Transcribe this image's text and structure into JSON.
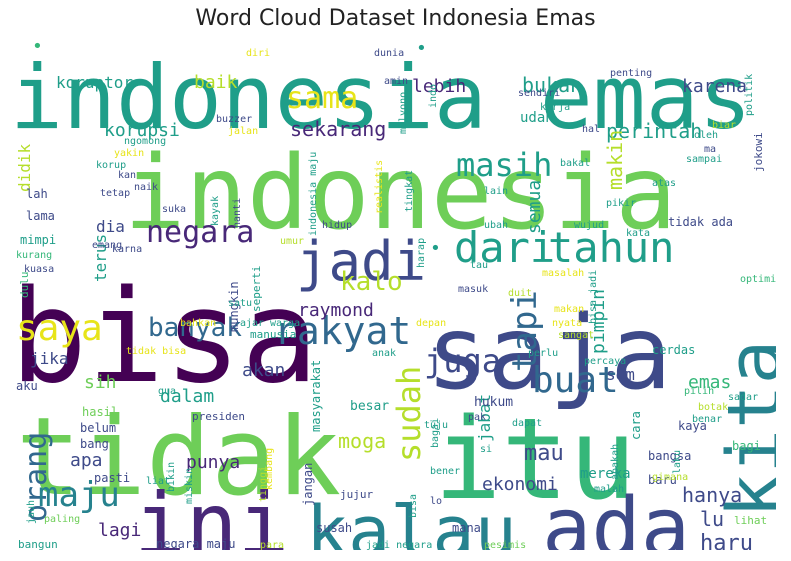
{
  "title": "Word Cloud Dataset Indonesia Emas",
  "palette": {
    "dark_purple": "#440154",
    "purple": "#482878",
    "indigo": "#3e4a89",
    "blue": "#31688e",
    "teal_blue": "#26828e",
    "teal": "#1f9e89",
    "green_teal": "#35b779",
    "green": "#6ece58",
    "lime": "#b5de2b",
    "yellow": "#e7e419"
  },
  "words": [
    {
      "text": "indonesia emas",
      "color": "teal"
    },
    {
      "text": "indonesia",
      "color": "green"
    },
    {
      "text": "bisa",
      "color": "dark_purple"
    },
    {
      "text": "saja",
      "color": "indigo"
    },
    {
      "text": "tidak",
      "color": "green"
    },
    {
      "text": "itu",
      "color": "green_teal"
    },
    {
      "text": "kita",
      "color": "teal_blue"
    },
    {
      "text": "ini",
      "color": "purple"
    },
    {
      "text": "ada",
      "color": "indigo"
    },
    {
      "text": "kalau",
      "color": "teal_blue"
    },
    {
      "text": "jadi",
      "color": "indigo"
    },
    {
      "text": "dari",
      "color": "teal"
    },
    {
      "text": "tahun",
      "color": "teal"
    },
    {
      "text": "sama",
      "color": "yellow"
    },
    {
      "text": "saya",
      "color": "yellow"
    },
    {
      "text": "rakyat",
      "color": "blue"
    },
    {
      "text": "negara",
      "color": "purple"
    },
    {
      "text": "masih",
      "color": "teal"
    },
    {
      "text": "tapi",
      "color": "blue"
    },
    {
      "text": "buat",
      "color": "blue"
    },
    {
      "text": "juga",
      "color": "indigo"
    },
    {
      "text": "banyak",
      "color": "blue"
    },
    {
      "text": "kalo",
      "color": "lime"
    },
    {
      "text": "sudah",
      "color": "lime"
    },
    {
      "text": "orang",
      "color": "blue"
    },
    {
      "text": "maju",
      "color": "teal_blue"
    },
    {
      "text": "korupsi",
      "color": "teal"
    },
    {
      "text": "sekarang",
      "color": "purple"
    },
    {
      "text": "lebih",
      "color": "purple"
    },
    {
      "text": "bukan",
      "color": "teal"
    },
    {
      "text": "karena",
      "color": "indigo"
    },
    {
      "text": "perintah",
      "color": "teal"
    },
    {
      "text": "makin",
      "color": "lime"
    },
    {
      "text": "semua",
      "color": "teal"
    },
    {
      "text": "udah",
      "color": "teal"
    },
    {
      "text": "raymond",
      "color": "purple"
    },
    {
      "text": "pimpin",
      "color": "teal"
    },
    {
      "text": "akan",
      "color": "indigo"
    },
    {
      "text": "dalam",
      "color": "teal"
    },
    {
      "text": "emas",
      "color": "green_teal"
    },
    {
      "text": "sih",
      "color": "green"
    },
    {
      "text": "jika",
      "color": "indigo"
    },
    {
      "text": "apa",
      "color": "indigo"
    },
    {
      "text": "punya",
      "color": "purple"
    },
    {
      "text": "moga",
      "color": "lime"
    },
    {
      "text": "mau",
      "color": "indigo"
    },
    {
      "text": "jabat",
      "color": "teal"
    },
    {
      "text": "hanya",
      "color": "indigo"
    },
    {
      "text": "ekonomi",
      "color": "indigo"
    },
    {
      "text": "lu",
      "color": "indigo"
    },
    {
      "text": "haru",
      "color": "indigo"
    },
    {
      "text": "lagi",
      "color": "purple"
    },
    {
      "text": "baik",
      "color": "lime"
    },
    {
      "text": "koruptor",
      "color": "teal"
    },
    {
      "text": "sdm",
      "color": "indigo"
    },
    {
      "text": "didik",
      "color": "lime"
    },
    {
      "text": "terus",
      "color": "teal"
    },
    {
      "text": "dia",
      "color": "indigo"
    },
    {
      "text": "lama",
      "color": "indigo"
    },
    {
      "text": "lah",
      "color": "indigo"
    },
    {
      "text": "mimpi",
      "color": "teal"
    },
    {
      "text": "kurang",
      "color": "green_teal"
    },
    {
      "text": "kuasa",
      "color": "indigo"
    },
    {
      "text": "dulu",
      "color": "green_teal"
    },
    {
      "text": "aku",
      "color": "indigo"
    },
    {
      "text": "gua",
      "color": "teal"
    },
    {
      "text": "hasil",
      "color": "green"
    },
    {
      "text": "belum",
      "color": "indigo"
    },
    {
      "text": "bang",
      "color": "indigo"
    },
    {
      "text": "pasti",
      "color": "indigo"
    },
    {
      "text": "liat",
      "color": "teal"
    },
    {
      "text": "jangan",
      "color": "indigo"
    },
    {
      "text": "susah",
      "color": "indigo"
    },
    {
      "text": "mana",
      "color": "indigo"
    },
    {
      "text": "jujur",
      "color": "indigo"
    },
    {
      "text": "mereka",
      "color": "teal"
    },
    {
      "text": "baru",
      "color": "indigo"
    },
    {
      "text": "lihat",
      "color": "green"
    },
    {
      "text": "bangun",
      "color": "teal"
    },
    {
      "text": "paling",
      "color": "green"
    },
    {
      "text": "negara maju",
      "color": "indigo"
    },
    {
      "text": "jadi negara",
      "color": "teal"
    },
    {
      "text": "pesimis",
      "color": "green"
    },
    {
      "text": "para",
      "color": "lime"
    },
    {
      "text": "bangsa",
      "color": "indigo"
    },
    {
      "text": "kaya",
      "color": "indigo"
    },
    {
      "text": "cara",
      "color": "teal"
    },
    {
      "text": "gimana",
      "color": "lime"
    },
    {
      "text": "bagi",
      "color": "green_teal"
    },
    {
      "text": "benar",
      "color": "teal"
    },
    {
      "text": "botak",
      "color": "lime"
    },
    {
      "text": "sadar",
      "color": "teal"
    },
    {
      "text": "pilih",
      "color": "green_teal"
    },
    {
      "text": "cerdas",
      "color": "teal"
    },
    {
      "text": "hukum",
      "color": "indigo"
    },
    {
      "text": "besar",
      "color": "teal"
    },
    {
      "text": "tuju",
      "color": "teal"
    },
    {
      "text": "presiden",
      "color": "indigo"
    },
    {
      "text": "masyarakat",
      "color": "teal"
    },
    {
      "text": "manusia",
      "color": "teal"
    },
    {
      "text": "warga",
      "color": "teal"
    },
    {
      "text": "seperti",
      "color": "teal"
    },
    {
      "text": "mungkin",
      "color": "indigo"
    },
    {
      "text": "satu",
      "color": "teal"
    },
    {
      "text": "karna",
      "color": "indigo"
    },
    {
      "text": "umur",
      "color": "lime"
    },
    {
      "text": "hidup",
      "color": "indigo"
    },
    {
      "text": "ubah",
      "color": "teal"
    },
    {
      "text": "wujud",
      "color": "teal"
    },
    {
      "text": "kata",
      "color": "teal"
    },
    {
      "text": "tidak ada",
      "color": "indigo"
    },
    {
      "text": "optimis",
      "color": "green_teal"
    },
    {
      "text": "tau",
      "color": "teal"
    },
    {
      "text": "masalah",
      "color": "yellow"
    },
    {
      "text": "duit",
      "color": "lime"
    },
    {
      "text": "masuk",
      "color": "indigo"
    },
    {
      "text": "makan",
      "color": "yellow"
    },
    {
      "text": "nyata",
      "color": "yellow"
    },
    {
      "text": "sangat",
      "color": "lime"
    },
    {
      "text": "perlu",
      "color": "teal"
    },
    {
      "text": "percaya",
      "color": "teal"
    },
    {
      "text": "depan",
      "color": "yellow"
    },
    {
      "text": "bisa jadi",
      "color": "teal"
    },
    {
      "text": "harap",
      "color": "teal"
    },
    {
      "text": "anak",
      "color": "teal"
    },
    {
      "text": "tidak bisa",
      "color": "yellow"
    },
    {
      "text": "bahkan",
      "color": "yellow"
    },
    {
      "text": "ajar",
      "color": "teal"
    },
    {
      "text": "emang",
      "color": "indigo"
    },
    {
      "text": "tetap",
      "color": "indigo"
    },
    {
      "text": "kayak",
      "color": "teal"
    },
    {
      "text": "suka",
      "color": "indigo"
    },
    {
      "text": "nanti",
      "color": "indigo"
    },
    {
      "text": "indonesia maju",
      "color": "teal"
    },
    {
      "text": "realistis",
      "color": "yellow"
    },
    {
      "text": "tingkat",
      "color": "teal"
    },
    {
      "text": "lain",
      "color": "teal"
    },
    {
      "text": "pikir",
      "color": "teal"
    },
    {
      "text": "atas",
      "color": "teal"
    },
    {
      "text": "jokowi",
      "color": "indigo"
    },
    {
      "text": "sampai",
      "color": "teal"
    },
    {
      "text": "oleh",
      "color": "teal"
    },
    {
      "text": "ma",
      "color": "indigo"
    },
    {
      "text": "biar",
      "color": "lime"
    },
    {
      "text": "bakal",
      "color": "teal"
    },
    {
      "text": "hal",
      "color": "indigo"
    },
    {
      "text": "politik",
      "color": "teal"
    },
    {
      "text": "kerja",
      "color": "teal"
    },
    {
      "text": "sendiri",
      "color": "indigo"
    },
    {
      "text": "penting",
      "color": "indigo"
    },
    {
      "text": "indo",
      "color": "teal"
    },
    {
      "text": "mulyono",
      "color": "teal"
    },
    {
      "text": "amin",
      "color": "indigo"
    },
    {
      "text": "dunia",
      "color": "indigo"
    },
    {
      "text": "diri",
      "color": "yellow"
    },
    {
      "text": "buzzer",
      "color": "indigo"
    },
    {
      "text": "jalan",
      "color": "yellow"
    },
    {
      "text": "ngomong",
      "color": "teal"
    },
    {
      "text": "kan",
      "color": "indigo"
    },
    {
      "text": "yakin",
      "color": "yellow"
    },
    {
      "text": "korup",
      "color": "teal"
    },
    {
      "text": "naik",
      "color": "indigo"
    },
    {
      "text": "kembang",
      "color": "yellow"
    },
    {
      "text": "bikin",
      "color": "teal"
    },
    {
      "text": "miskin",
      "color": "teal"
    },
    {
      "text": "tinggi",
      "color": "lime"
    },
    {
      "text": "bisa",
      "color": "teal"
    },
    {
      "text": "bener",
      "color": "teal"
    },
    {
      "text": "lo",
      "color": "indigo"
    },
    {
      "text": "malah",
      "color": "teal"
    },
    {
      "text": "laku",
      "color": "teal"
    },
    {
      "text": "si",
      "color": "teal"
    },
    {
      "text": "pak",
      "color": "indigo"
    },
    {
      "text": "dapat",
      "color": "teal"
    },
    {
      "text": "bagai",
      "color": "teal"
    },
    {
      "text": "apakah",
      "color": "teal"
    },
    {
      "text": "jauh",
      "color": "teal"
    },
    {
      "text": "•",
      "color": "green_teal"
    },
    {
      "text": "•",
      "color": "teal"
    },
    {
      "text": "•",
      "color": "teal"
    }
  ]
}
